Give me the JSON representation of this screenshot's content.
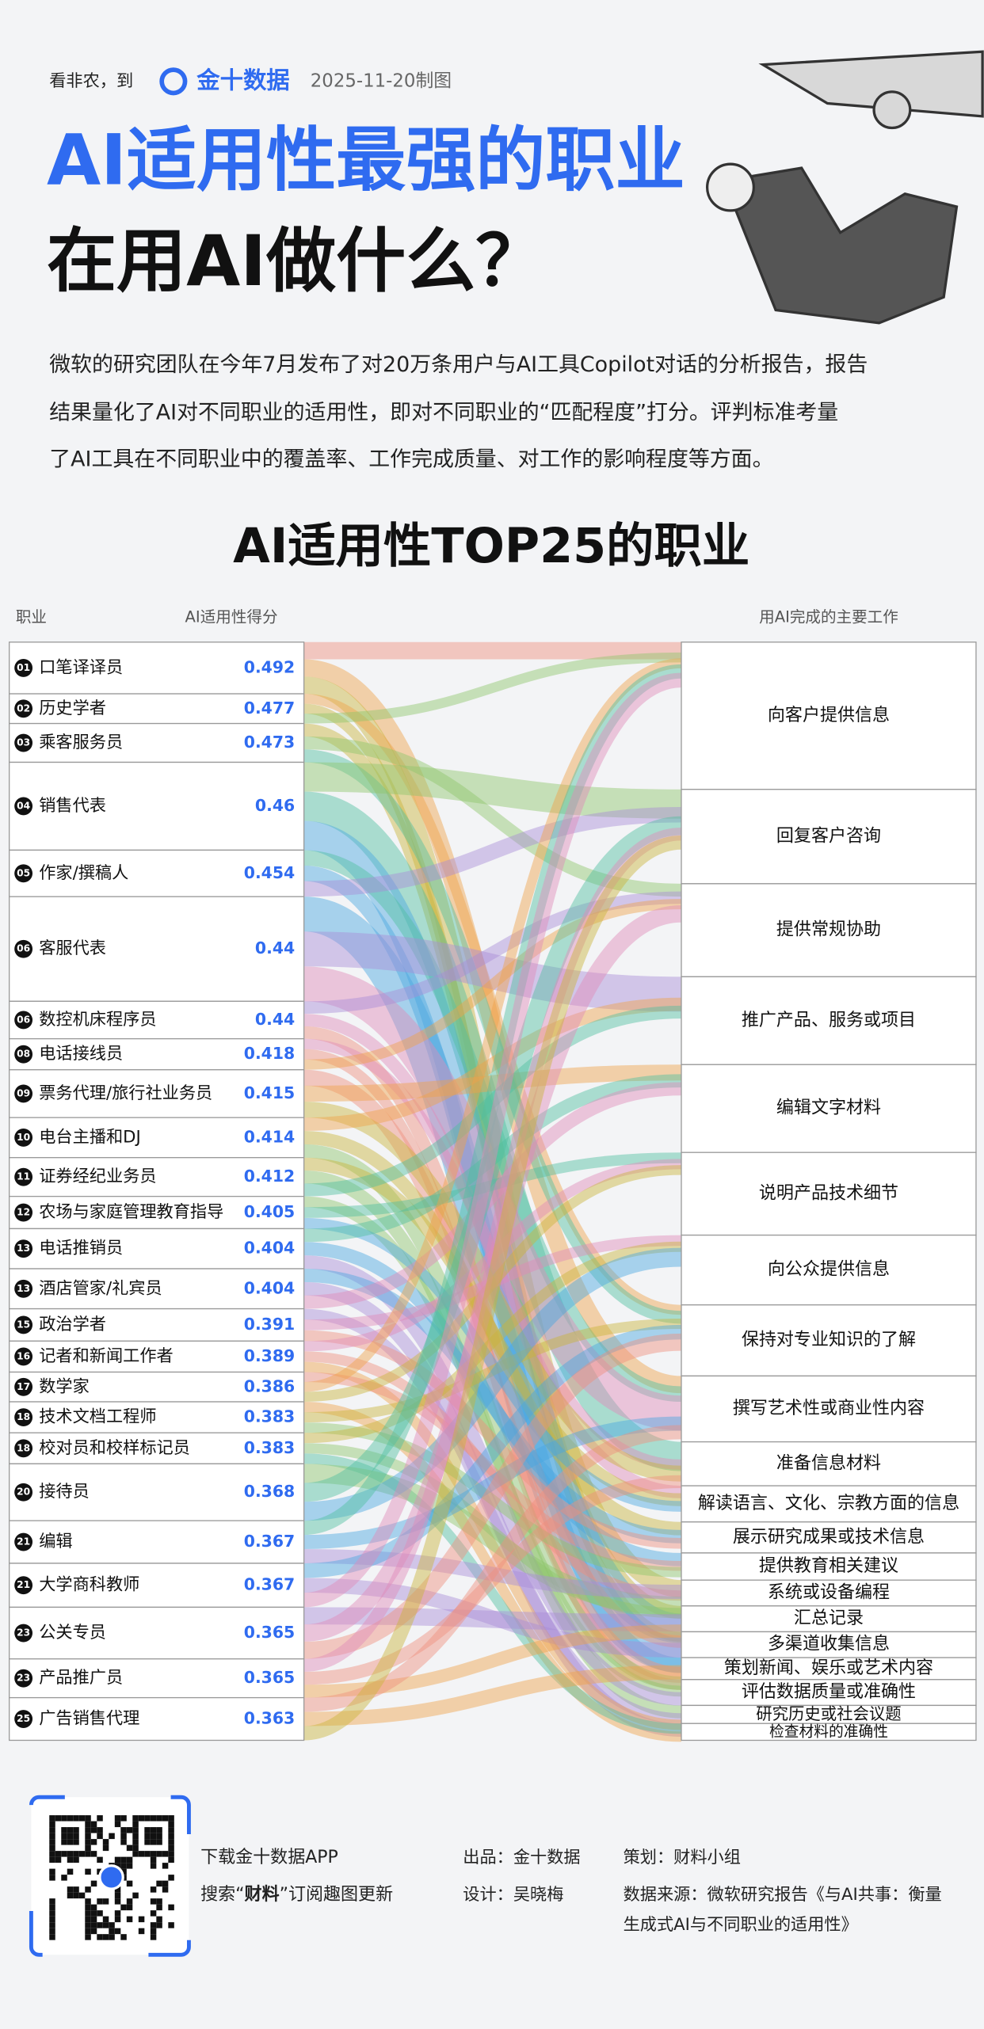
{
  "header": {
    "brand_prefix": "看非农，到",
    "brand": "金十数据",
    "date": "2025-11-20制图",
    "title_line1": "AI适用性最强的职业",
    "title_line2": "在用AI做什么？"
  },
  "intro": [
    "微软的研究团队在今年7月发布了对20万条用户与AI工具Copilot对话的分析报告，报告",
    "结果量化了AI对不同职业的适用性，即对不同职业的“匹配程度”打分。评判标准考量",
    "了AI工具在不同职业中的覆盖率、工作完成质量、对工作的影响程度等方面。"
  ],
  "table": {
    "title": "AI适用性TOP25的职业",
    "col_job": "职业",
    "col_score": "AI适用性得分",
    "col_task": "用AI完成的主要工作",
    "rows": [
      {
        "rank": "01",
        "job": "口笔译译员",
        "score": 0.492
      },
      {
        "rank": "02",
        "job": "历史学者",
        "score": 0.477
      },
      {
        "rank": "03",
        "job": "乘客服务员",
        "score": 0.473
      },
      {
        "rank": "04",
        "job": "销售代表",
        "score": 0.46
      },
      {
        "rank": "05",
        "job": "作家/撰稿人",
        "score": 0.454
      },
      {
        "rank": "06",
        "job": "客服代表",
        "score": 0.44
      },
      {
        "rank": "06",
        "job": "数控机床程序员",
        "score": 0.44
      },
      {
        "rank": "08",
        "job": "电话接线员",
        "score": 0.418
      },
      {
        "rank": "09",
        "job": "票务代理/旅行社业务员",
        "score": 0.415
      },
      {
        "rank": "10",
        "job": "电台主播和DJ",
        "score": 0.414
      },
      {
        "rank": "11",
        "job": "证券经纪业务员",
        "score": 0.412
      },
      {
        "rank": "12",
        "job": "农场与家庭管理教育指导",
        "score": 0.405
      },
      {
        "rank": "13",
        "job": "电话推销员",
        "score": 0.404
      },
      {
        "rank": "13",
        "job": "酒店管家/礼宾员",
        "score": 0.404
      },
      {
        "rank": "15",
        "job": "政治学者",
        "score": 0.391
      },
      {
        "rank": "16",
        "job": "记者和新闻工作者",
        "score": 0.389
      },
      {
        "rank": "17",
        "job": "数学家",
        "score": 0.386
      },
      {
        "rank": "18",
        "job": "技术文档工程师",
        "score": 0.383
      },
      {
        "rank": "18",
        "job": "校对员和校样标记员",
        "score": 0.383
      },
      {
        "rank": "20",
        "job": "接待员",
        "score": 0.368
      },
      {
        "rank": "21",
        "job": "编辑",
        "score": 0.367
      },
      {
        "rank": "21",
        "job": "大学商科教师",
        "score": 0.367
      },
      {
        "rank": "23",
        "job": "公关专员",
        "score": 0.365
      },
      {
        "rank": "23",
        "job": "产品推广员",
        "score": 0.365
      },
      {
        "rank": "25",
        "job": "广告销售代理",
        "score": 0.363
      }
    ],
    "tasks": [
      "向客户提供信息",
      "回复客户咨询",
      "提供常规协助",
      "推广产品、服务或项目",
      "编辑文字材料",
      "说明产品技术细节",
      "向公众提供信息",
      "保持对专业知识的了解",
      "撰写艺术性或商业性内容",
      "准备信息材料",
      "解读语言、文化、宗教方面的信息",
      "展示研究成果或技术信息",
      "提供教育相关建议",
      "系统或设备编程",
      "汇总记录",
      "多渠道收集信息",
      "策划新闻、娱乐或艺术内容",
      "评估数据质量或准确性",
      "研究历史或社会议题",
      "检查材料的准确性"
    ]
  },
  "footer": {
    "app_line": "下载金十数据APP",
    "search": [
      "搜索“",
      "财料",
      "”订阅趣图更新"
    ],
    "producer": "出品：金十数据",
    "planner": "策划：财料小组",
    "designer": "设计：吴晓梅",
    "source": [
      "数据来源：微软研究报告《与AI共事：衡量",
      "生成式AI与不同职业的适用性》"
    ]
  }
}
